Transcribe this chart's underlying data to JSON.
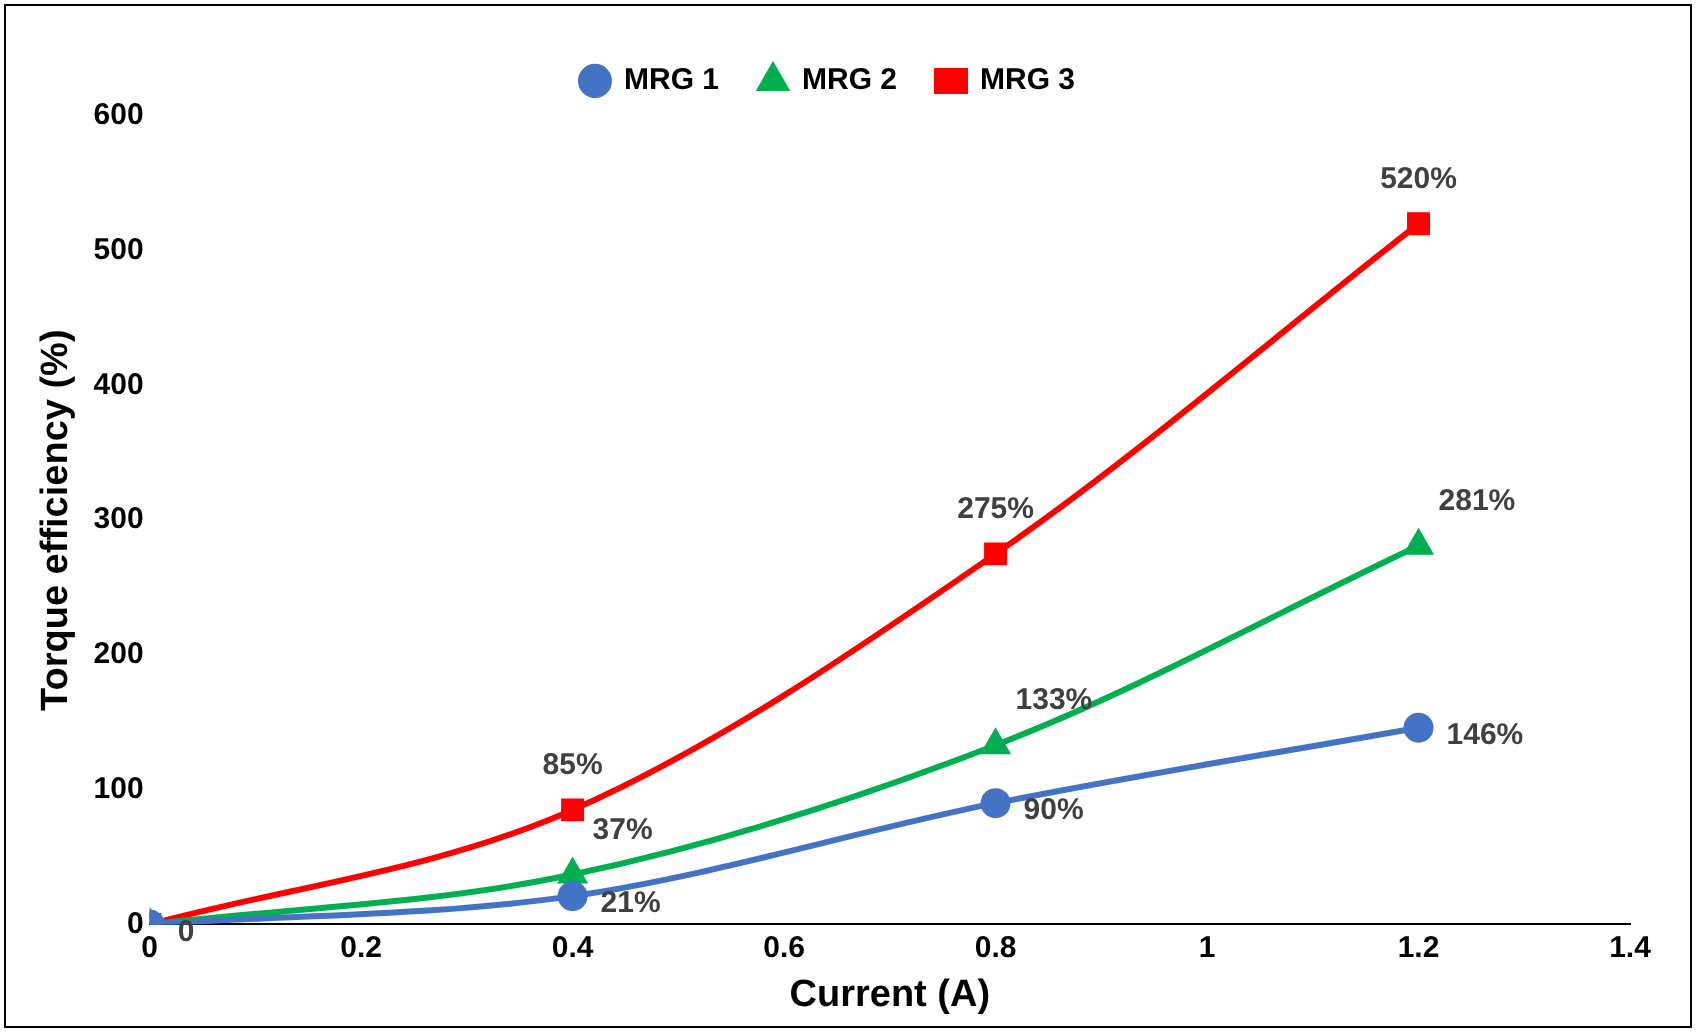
{
  "chart_data": {
    "type": "line",
    "xlabel": "Current (A)",
    "ylabel": "Torque efficiency (%)",
    "xlim": [
      0,
      1.4
    ],
    "xticks": [
      0,
      0.2,
      0.4,
      0.6,
      0.8,
      1,
      1.2,
      1.4
    ],
    "ylim": [
      0,
      600
    ],
    "yticks": [
      0,
      100,
      200,
      300,
      400,
      500,
      600
    ],
    "grid": false,
    "legend": "top",
    "line_style": "solid",
    "series": [
      {
        "name": "MRG 1",
        "color": "#4472c4",
        "marker": "circle",
        "x": [
          0,
          0.4,
          0.8,
          1.2
        ],
        "values": [
          0,
          21,
          90,
          146
        ],
        "value_labels": [
          "0",
          "21%",
          "90%",
          "146%"
        ]
      },
      {
        "name": "MRG 2",
        "color": "#00b050",
        "marker": "triangle",
        "x": [
          0,
          0.4,
          0.8,
          1.2
        ],
        "values": [
          0,
          37,
          133,
          281
        ],
        "value_labels": [
          null,
          "37%",
          "133%",
          "281%"
        ]
      },
      {
        "name": "MRG 3",
        "color": "#ff0000",
        "marker": "square",
        "x": [
          0,
          0.4,
          0.8,
          1.2
        ],
        "values": [
          0,
          85,
          275,
          520
        ],
        "value_labels": [
          null,
          "85%",
          "275%",
          "520%"
        ]
      }
    ]
  }
}
